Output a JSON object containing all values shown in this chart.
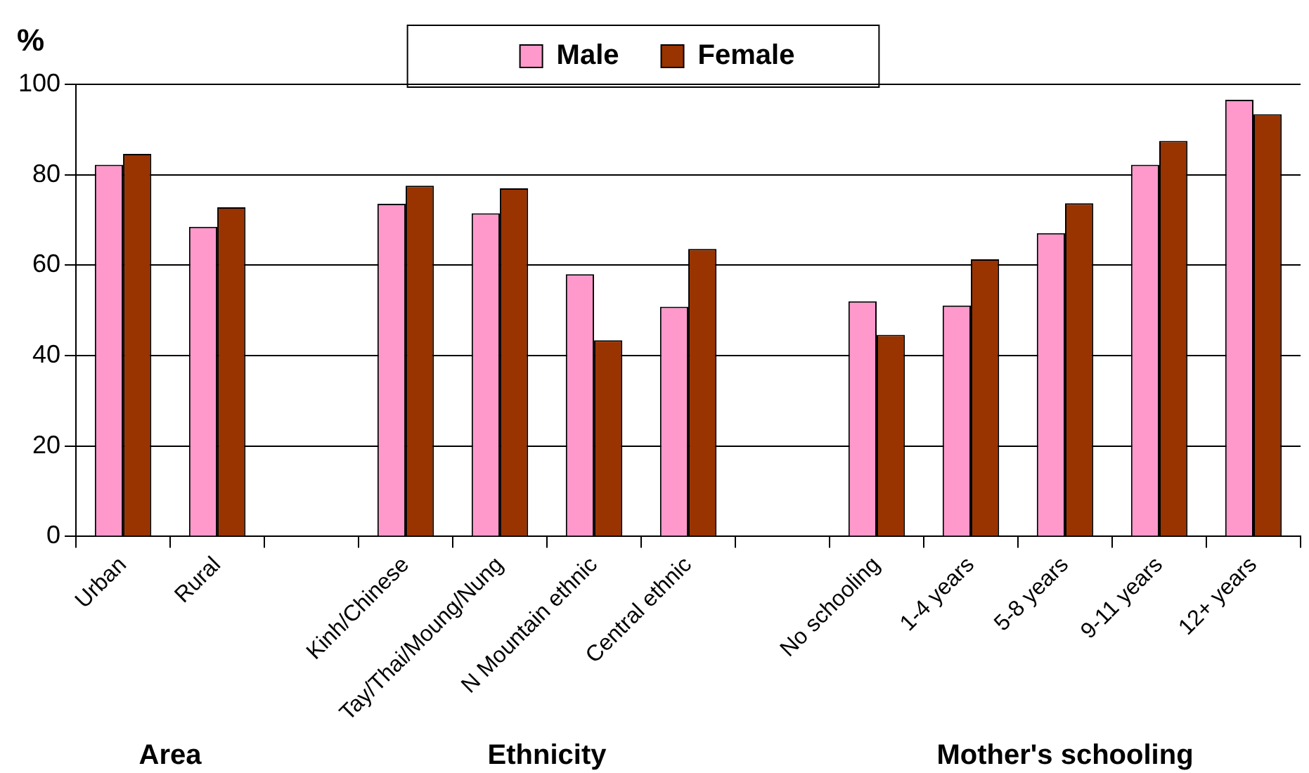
{
  "chart_data": {
    "type": "bar",
    "ylabel": "%",
    "categories": [
      "Urban",
      "Rural",
      null,
      "Kinh/Chinese",
      "Tay/Thai/Moung/Nung",
      "N Mountain ethnic",
      "Central ethnic",
      null,
      "No schooling",
      "1-4 years",
      "5-8 years",
      "9-11 years",
      "12+ years"
    ],
    "series": [
      {
        "name": "Male",
        "color": "#ff99cc",
        "values": [
          82.2,
          68.5,
          null,
          73.6,
          71.5,
          58.0,
          50.8,
          null,
          52.0,
          51.1,
          67.1,
          82.2,
          96.6
        ]
      },
      {
        "name": "Female",
        "color": "#993300",
        "values": [
          84.6,
          72.8,
          null,
          77.6,
          77.0,
          43.4,
          63.6,
          null,
          44.6,
          61.3,
          73.7,
          87.5,
          93.4
        ]
      }
    ],
    "ylim": [
      0,
      100
    ],
    "yticks": [
      0,
      20,
      40,
      60,
      80,
      100
    ],
    "grid": "y",
    "legend": "top",
    "annotations": [
      "Area",
      "Ethnicity",
      "Mother's schooling"
    ]
  }
}
